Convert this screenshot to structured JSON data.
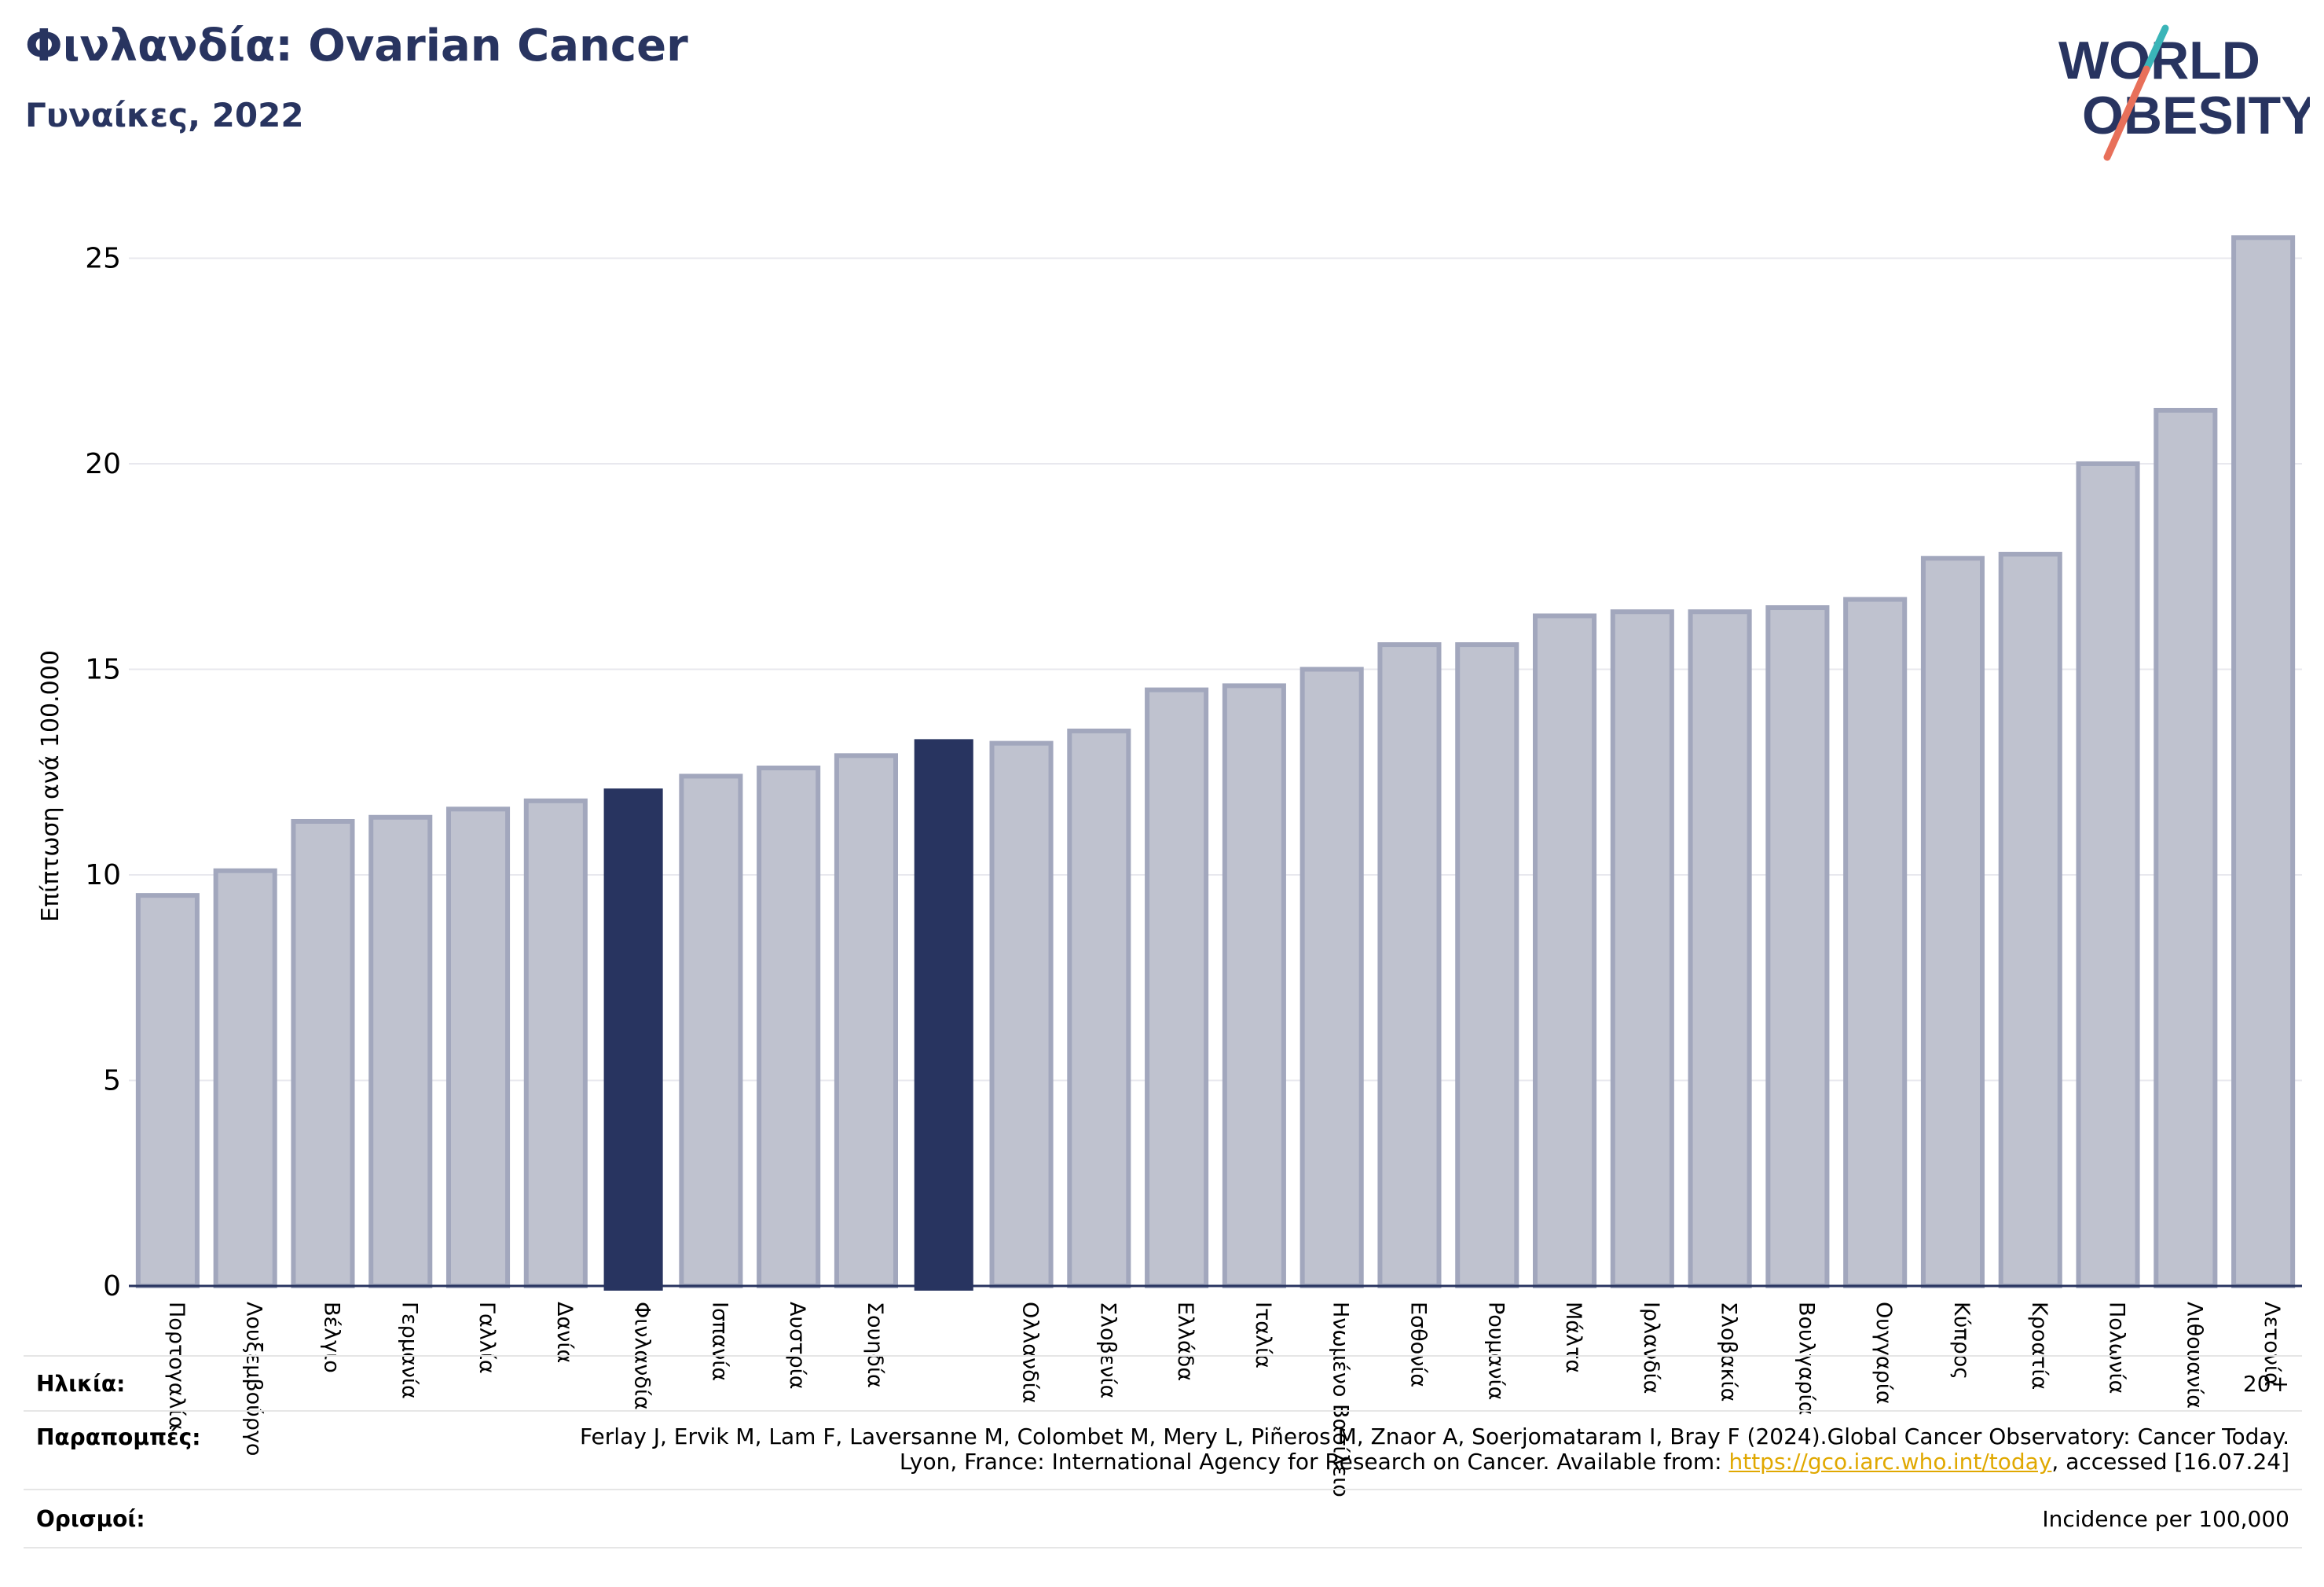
{
  "header": {
    "title": "Φινλανδία: Ovarian Cancer",
    "subtitle": "Γυναίκες, 2022"
  },
  "logo": {
    "line1": "WORLD",
    "line2": "OBESITY",
    "colors": {
      "text": "#283460",
      "slash_top": "#3ab5b8",
      "slash_bottom": "#e8705a"
    }
  },
  "colors": {
    "bar_default": "#bfc2cf",
    "bar_default_stroke": "#a2a7bd",
    "bar_highlight": "#283460",
    "grid": "#e8e8ee",
    "axis": "#283460"
  },
  "chart_data": {
    "type": "bar",
    "title": "",
    "ylabel": "Επίπτωση ανά 100.000",
    "xlabel": "",
    "ylim": [
      0,
      26.5
    ],
    "yticks": [
      0,
      5,
      10,
      15,
      20,
      25
    ],
    "grid": true,
    "categories": [
      "Πορτογαλία",
      "Λουξεμβούργο",
      "Βέλγιο",
      "Γερμανία",
      "Γαλλία",
      "Δανία",
      "Φινλανδία",
      "Ισπανία",
      "Αυστρία",
      "Σουηδία",
      "",
      "Ολλανδία",
      "Σλοβενία",
      "Ελλάδα",
      "Ιταλία",
      "Ηνωμένο Βασίλειο",
      "Εσθονία",
      "Ρουμανία",
      "Μάλτα",
      "Ιρλανδία",
      "Σλοβακία",
      "Βουλγαρία",
      "Ουγγαρία",
      "Κύπρος",
      "Κροατία",
      "Πολωνία",
      "Λιθουανία",
      "Λετονία"
    ],
    "values": [
      9.5,
      10.1,
      11.3,
      11.4,
      11.6,
      11.8,
      12.1,
      12.4,
      12.6,
      12.9,
      13.3,
      13.2,
      13.5,
      14.5,
      14.6,
      15.0,
      15.6,
      15.6,
      16.3,
      16.4,
      16.4,
      16.5,
      16.7,
      17.7,
      17.8,
      20.0,
      21.3,
      25.5
    ],
    "highlighted": [
      6,
      10
    ]
  },
  "footer": {
    "age_label": "Ηλικία:",
    "age_value": "20+",
    "refs_label": "Παραπομπές:",
    "refs_text": "Ferlay J, Ervik M, Lam F, Laversanne M, Colombet M, Mery L, Piñeros M, Znaor A, Soerjomataram I, Bray F (2024).Global Cancer Observatory: Cancer Today. Lyon, France: International Agency for Research on Cancer. Available from:",
    "refs_link": "https://gco.iarc.who.int/today",
    "refs_suffix": ", accessed [16.07.24]",
    "defs_label": "Ορισμοί:",
    "defs_value": "Incidence per 100,000"
  }
}
